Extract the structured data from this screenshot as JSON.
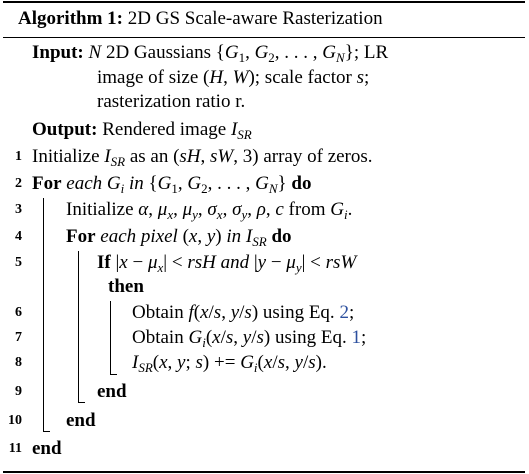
{
  "algorithm": {
    "label": "Algorithm 1:",
    "title": "2D GS Scale-aware Rasterization"
  },
  "input": {
    "keyword": "Input:",
    "line1": "N 2D Gaussians {G1, G2, . . . , GN}; LR",
    "line2": "image of size (H, W); scale factor s;",
    "line3": "rasterization ratio r."
  },
  "output": {
    "keyword": "Output:",
    "text": "Rendered image ISR"
  },
  "steps": [
    {
      "num": "1",
      "text": "Initialize ISR as an (sH, sW, 3) array of zeros."
    },
    {
      "num": "2",
      "kw_for": "For",
      "text": "each Gi in {G1, G2, . . . , GN}",
      "kw_do": "do"
    },
    {
      "num": "3",
      "text": "Initialize α, μx, μy, σx, σy, ρ, c from Gi."
    },
    {
      "num": "4",
      "kw_for": "For",
      "text": "each pixel (x, y) in ISR",
      "kw_do": "do"
    },
    {
      "num": "5",
      "kw_if": "If",
      "text": "|x − μx| < rsH and |y − μy| < rsW",
      "kw_then": "then"
    },
    {
      "num": "6",
      "text": "Obtain f(x/s, y/s) using Eq.",
      "ref": "2",
      "tail": ";"
    },
    {
      "num": "7",
      "text": "Obtain Gi(x/s, y/s) using Eq.",
      "ref": "1",
      "tail": ";"
    },
    {
      "num": "8",
      "text": "ISR(x, y; s) += Gi(x/s, y/s)."
    },
    {
      "num": "9",
      "kw": "end"
    },
    {
      "num": "10",
      "kw": "end"
    },
    {
      "num": "11",
      "kw": "end"
    }
  ]
}
